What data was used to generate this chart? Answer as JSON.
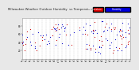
{
  "title": "Milwaukee Weather Outdoor Humidity  vs Temperature  Every 5 Minutes",
  "title_fontsize": 2.8,
  "background_color": "#e8e8e8",
  "plot_bg_color": "#ffffff",
  "grid_color": "#bbbbbb",
  "legend_label_humidity": "Humidity",
  "legend_label_temp": "Temperature",
  "legend_color_humidity": "#0000dd",
  "legend_color_temp": "#dd0000",
  "legend_bar_humidity": "#2222ff",
  "legend_bar_temp": "#ff2222",
  "dot_color_blue": "#1111cc",
  "dot_color_red": "#cc1111",
  "xlim": [
    0,
    100
  ],
  "ylim": [
    0,
    100
  ],
  "x_tick_fontsize": 1.6,
  "y_tick_fontsize": 2.0,
  "marker_size": 0.8,
  "seed": 99
}
